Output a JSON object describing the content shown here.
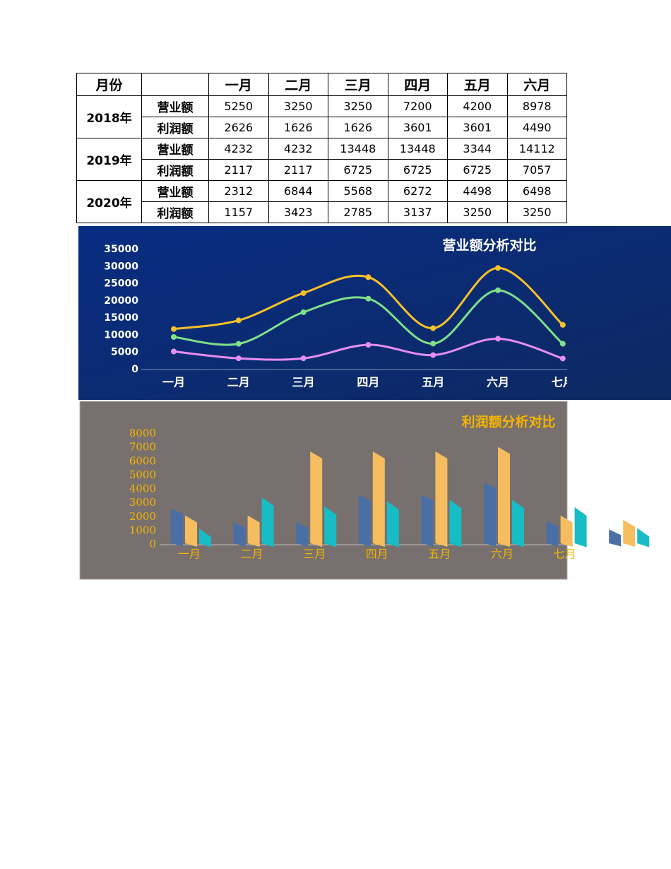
{
  "table": {
    "corner": "月份",
    "columns": [
      "一月",
      "二月",
      "三月",
      "四月",
      "五月",
      "六月"
    ],
    "groups": [
      {
        "year": "2018年",
        "rows": [
          {
            "label": "营业额",
            "values": [
              5250,
              3250,
              3250,
              7200,
              4200,
              8978
            ]
          },
          {
            "label": "利润额",
            "values": [
              2626,
              1626,
              1626,
              3601,
              3601,
              4490
            ]
          }
        ]
      },
      {
        "year": "2019年",
        "rows": [
          {
            "label": "营业额",
            "values": [
              4232,
              4232,
              13448,
              13448,
              3344,
              14112
            ]
          },
          {
            "label": "利润额",
            "values": [
              2117,
              2117,
              6725,
              6725,
              6725,
              7057
            ]
          }
        ]
      },
      {
        "year": "2020年",
        "rows": [
          {
            "label": "营业额",
            "values": [
              2312,
              6844,
              5568,
              6272,
              4498,
              6498
            ]
          },
          {
            "label": "利润额",
            "values": [
              1157,
              3423,
              2785,
              3137,
              3250,
              3250
            ]
          }
        ]
      }
    ]
  },
  "chart_data": [
    {
      "type": "line",
      "title": "营业额分析对比",
      "stacked": true,
      "smooth": true,
      "categories": [
        "一月",
        "二月",
        "三月",
        "四月",
        "五月",
        "六月",
        "七月"
      ],
      "ylim": [
        0,
        35000
      ],
      "yticks": [
        0,
        5000,
        10000,
        15000,
        20000,
        25000,
        30000,
        35000
      ],
      "series": [
        {
          "color": "#e58ef0",
          "values": [
            5250,
            3250,
            3250,
            7200,
            4200,
            8978,
            3200
          ]
        },
        {
          "color": "#7fe08a",
          "values": [
            4232,
            4232,
            13448,
            13448,
            3344,
            14112,
            4300
          ]
        },
        {
          "color": "#f7c12a",
          "values": [
            2312,
            6844,
            5568,
            6272,
            4498,
            6498,
            5500
          ]
        }
      ]
    },
    {
      "type": "bar",
      "title": "利润额分析对比",
      "categories": [
        "一月",
        "二月",
        "三月",
        "四月",
        "五月",
        "六月",
        "七月",
        null
      ],
      "ylim": [
        0,
        8000
      ],
      "yticks": [
        0,
        1000,
        2000,
        3000,
        4000,
        5000,
        6000,
        7000,
        8000
      ],
      "series": [
        {
          "color": "#4a6fa5",
          "values": [
            2626,
            1626,
            1626,
            3601,
            3601,
            4490,
            1700,
            1100
          ]
        },
        {
          "color": "#f5bd5f",
          "values": [
            2117,
            2117,
            6725,
            6725,
            6725,
            7057,
            2100,
            1800
          ]
        },
        {
          "color": "#17bcc4",
          "values": [
            1157,
            3423,
            2785,
            3137,
            3250,
            3250,
            2700,
            1200
          ]
        }
      ]
    }
  ]
}
